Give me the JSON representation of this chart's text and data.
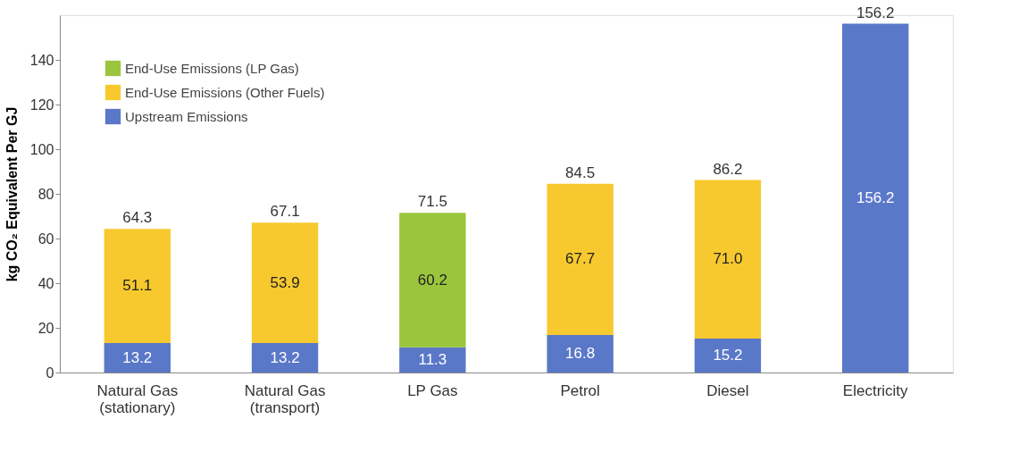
{
  "chart_data": {
    "type": "bar",
    "stacked": true,
    "ylabel": "kg CO₂ Equivalent Per GJ",
    "categories": [
      "Natural Gas\n(stationary)",
      "Natural Gas\n(transport)",
      "LP Gas",
      "Petrol",
      "Diesel",
      "Electricity"
    ],
    "series": [
      {
        "name": "Upstream Emissions",
        "color": "#5a78c8",
        "values": [
          13.2,
          13.2,
          11.3,
          16.8,
          15.2,
          156.2
        ],
        "value_labels": [
          "13.2",
          "13.2",
          "11.3",
          "16.8",
          "15.2",
          "156.2"
        ]
      },
      {
        "name": "End-Use Emissions (Other Fuels)",
        "color": "#f7c92e",
        "values": [
          51.1,
          53.9,
          null,
          67.7,
          71.0,
          null
        ],
        "value_labels": [
          "51.1",
          "53.9",
          null,
          "67.7",
          "71.0",
          null
        ]
      },
      {
        "name": "End-Use Emissions (LP Gas)",
        "color": "#9bc53d",
        "values": [
          null,
          null,
          60.2,
          null,
          null,
          null
        ],
        "value_labels": [
          null,
          null,
          "60.2",
          null,
          null,
          null
        ]
      }
    ],
    "totals": [
      "64.3",
      "67.1",
      "71.5",
      "84.5",
      "86.2",
      "156.2"
    ],
    "ylim": [
      0,
      160
    ],
    "yticks": [
      0,
      20,
      40,
      60,
      80,
      100,
      120,
      140
    ],
    "grid": false,
    "legend": "top left"
  }
}
